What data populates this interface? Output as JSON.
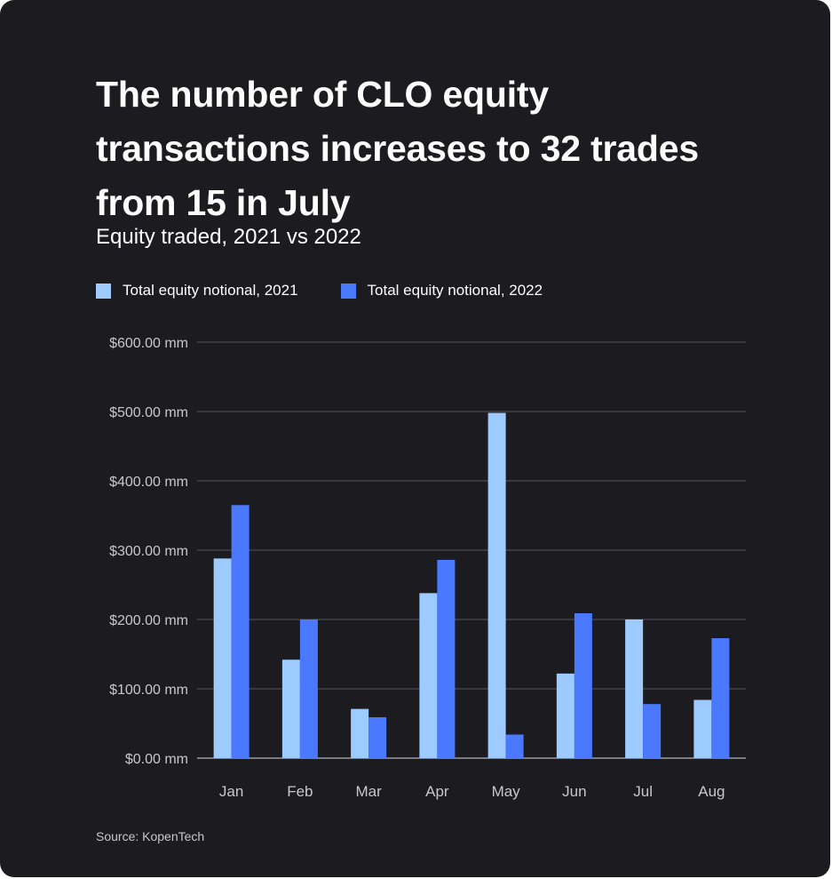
{
  "header": {
    "title": "The number of CLO equity transactions increases to 32 trades from 15 in July",
    "subtitle": "Equity traded, 2021 vs 2022"
  },
  "legend": [
    {
      "label": "Total equity notional, 2021",
      "color": "#9ecbff"
    },
    {
      "label": "Total equity notional, 2022",
      "color": "#4a78ff"
    }
  ],
  "footer": {
    "source": "Source: KopenTech"
  },
  "colors": {
    "background": "#1b1b20",
    "grid": "#55555c",
    "axis_text": "#c8c8cc"
  },
  "chart_data": {
    "type": "bar",
    "categories": [
      "Jan",
      "Feb",
      "Mar",
      "Apr",
      "May",
      "Jun",
      "Jul",
      "Aug"
    ],
    "series": [
      {
        "name": "Total equity notional, 2021",
        "values": [
          288,
          142,
          71,
          238,
          498,
          122,
          200,
          84
        ]
      },
      {
        "name": "Total equity notional, 2022",
        "values": [
          365,
          200,
          59,
          286,
          34,
          209,
          78,
          173
        ]
      }
    ],
    "ylim": [
      0,
      600
    ],
    "yticks": [
      0,
      100,
      200,
      300,
      400,
      500,
      600
    ],
    "ytick_labels": [
      "$0.00 mm",
      "$100.00 mm",
      "$200.00 mm",
      "$300.00 mm",
      "$400.00 mm",
      "$500.00 mm",
      "$600.00 mm"
    ],
    "grid": true,
    "legend_position": "top-left"
  }
}
